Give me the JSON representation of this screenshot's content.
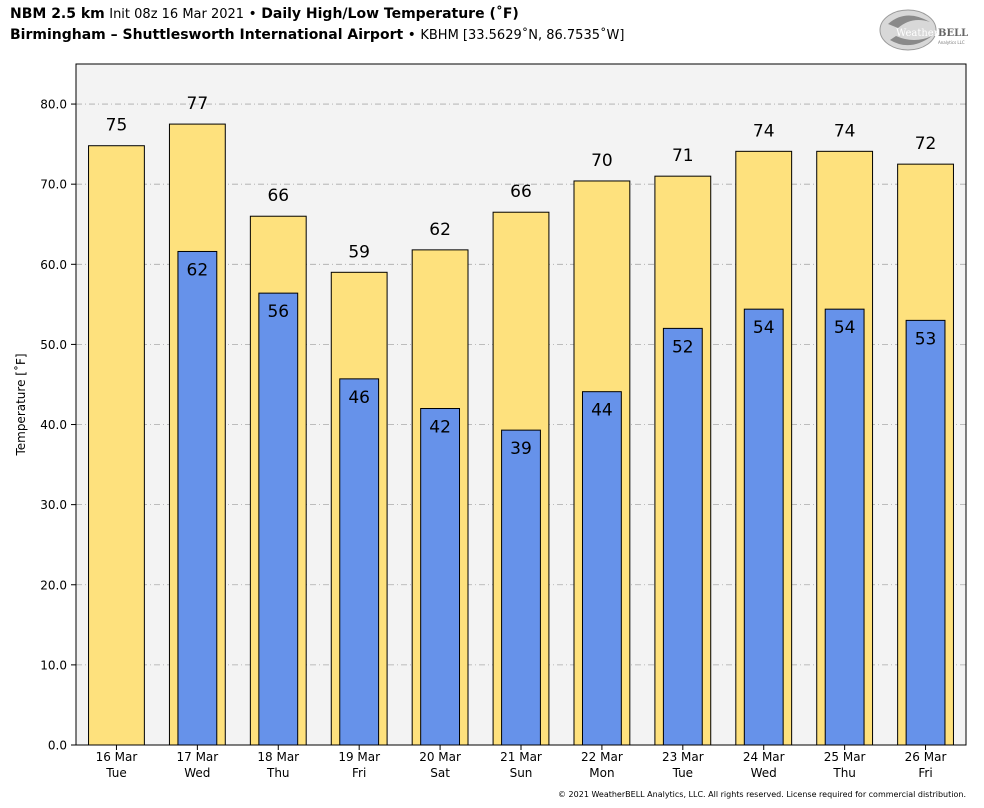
{
  "header": {
    "model": "NBM 2.5 km",
    "init": "Init 08z 16 Mar 2021",
    "bullet": "•",
    "product": "Daily High/Low Temperature (˚F)",
    "location": "Birmingham – Shuttlesworth International Airport",
    "station": "KBHM [33.5629˚N, 86.7535˚W]"
  },
  "logo": {
    "text_a": "Weather",
    "text_b": "BELL",
    "text_c": "Analytics LLC"
  },
  "copyright": "© 2021 WeatherBELL Analytics, LLC. All rights reserved. License required for commercial distribution.",
  "colors": {
    "high_fill": "#fee17d",
    "low_fill": "#6692ea",
    "plot_bg": "#f3f3f3",
    "grid": "#aaaaaa"
  },
  "chart_data": {
    "type": "bar",
    "title": "Daily High/Low Temperature (˚F)",
    "xlabel": "",
    "ylabel": "Temperature [˚F]",
    "ylim": [
      0,
      85
    ],
    "yticks": [
      0,
      10,
      20,
      30,
      40,
      50,
      60,
      70,
      80
    ],
    "ytick_labels": [
      "0.0",
      "10.0",
      "20.0",
      "30.0",
      "40.0",
      "50.0",
      "60.0",
      "70.0",
      "80.0"
    ],
    "grid": true,
    "categories": [
      {
        "date": "16 Mar",
        "day": "Tue"
      },
      {
        "date": "17 Mar",
        "day": "Wed"
      },
      {
        "date": "18 Mar",
        "day": "Thu"
      },
      {
        "date": "19 Mar",
        "day": "Fri"
      },
      {
        "date": "20 Mar",
        "day": "Sat"
      },
      {
        "date": "21 Mar",
        "day": "Sun"
      },
      {
        "date": "22 Mar",
        "day": "Mon"
      },
      {
        "date": "23 Mar",
        "day": "Tue"
      },
      {
        "date": "24 Mar",
        "day": "Wed"
      },
      {
        "date": "25 Mar",
        "day": "Thu"
      },
      {
        "date": "26 Mar",
        "day": "Fri"
      }
    ],
    "series": [
      {
        "key": "high",
        "values": [
          74.8,
          77.5,
          66.0,
          59.0,
          61.8,
          66.5,
          70.4,
          71.0,
          74.1,
          74.1,
          72.5
        ],
        "labels": [
          "75",
          "77",
          "66",
          "59",
          "62",
          "66",
          "70",
          "71",
          "74",
          "74",
          "72"
        ]
      },
      {
        "key": "low",
        "values": [
          null,
          61.6,
          56.4,
          45.7,
          42.0,
          39.3,
          44.1,
          52.0,
          54.4,
          54.4,
          53.0
        ],
        "labels": [
          "",
          "62",
          "56",
          "46",
          "42",
          "39",
          "44",
          "52",
          "54",
          "54",
          "53"
        ]
      }
    ]
  }
}
